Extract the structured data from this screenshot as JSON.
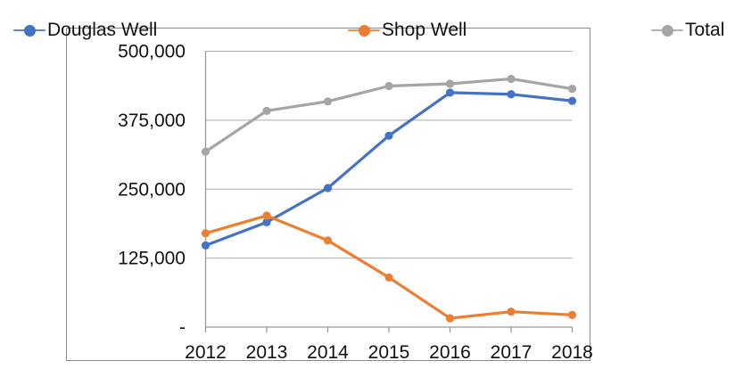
{
  "chart_data": {
    "type": "line",
    "title": "",
    "xlabel": "",
    "ylabel": "",
    "categories": [
      "2012",
      "2013",
      "2014",
      "2015",
      "2016",
      "2017",
      "2018"
    ],
    "series": [
      {
        "name": "Douglas Well",
        "color": "#4472C4",
        "values": [
          148000,
          190000,
          252000,
          347000,
          425000,
          422000,
          410000
        ]
      },
      {
        "name": "Shop Well",
        "color": "#ED7D31",
        "values": [
          170000,
          202000,
          157000,
          90000,
          16000,
          28000,
          22000
        ]
      },
      {
        "name": "Total",
        "color": "#A5A5A5",
        "values": [
          318000,
          392000,
          409000,
          437000,
          441000,
          450000,
          432000
        ]
      }
    ],
    "ylim": [
      0,
      500000
    ],
    "y_tick_step": 125000,
    "y_tick_labels": [
      "-",
      "125,000",
      "250,000",
      "375,000",
      "500,000"
    ],
    "grid": true,
    "legend_position": "top",
    "marker": "circle"
  },
  "colors": {
    "background": "#FFFFFF",
    "chart_border": "#8A8A8A",
    "gridline": "#ABABAB",
    "axis": "#999999",
    "text": "#111111"
  }
}
